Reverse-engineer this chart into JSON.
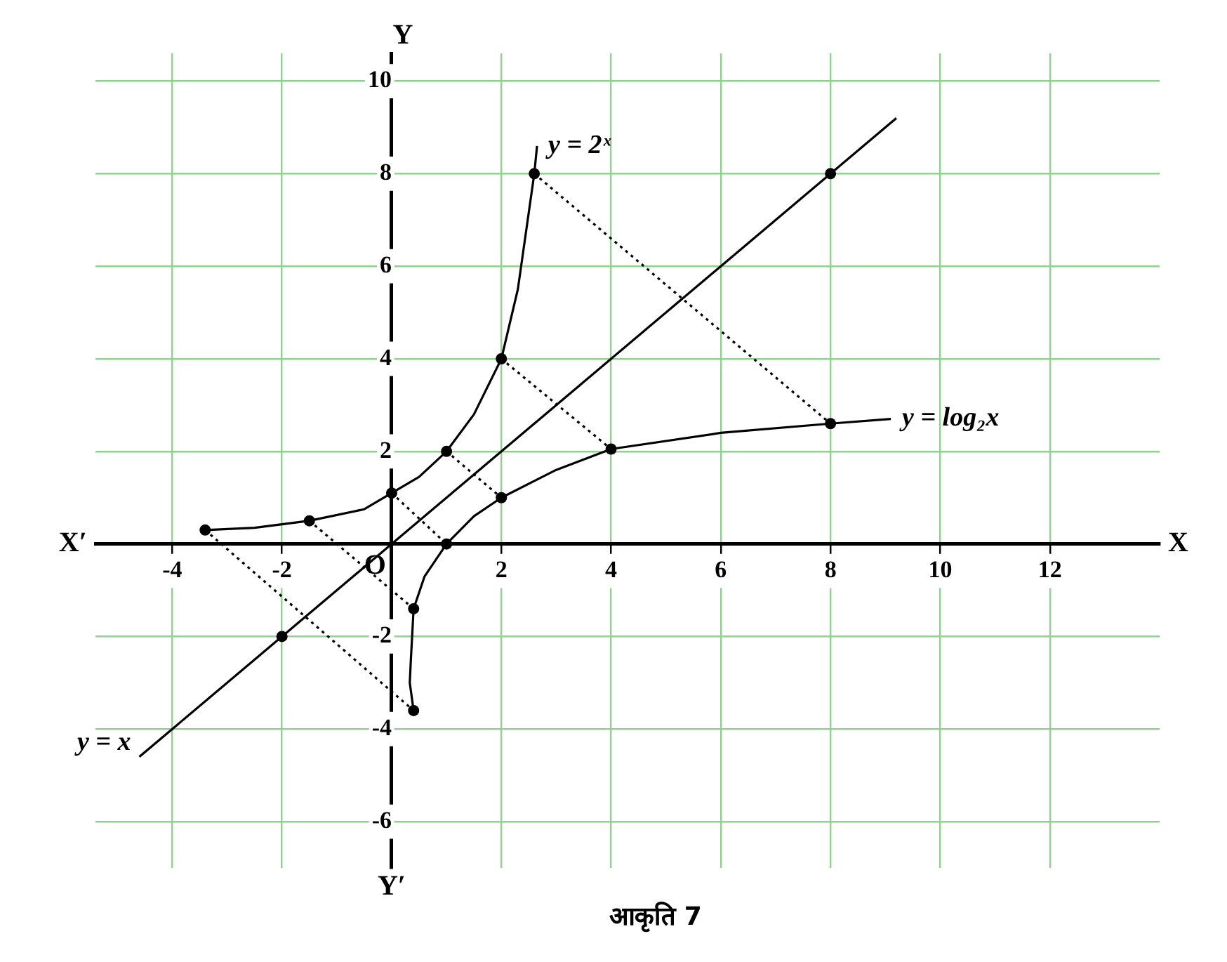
{
  "chart_data": {
    "type": "line",
    "xlabel": "X",
    "ylabel": "Y",
    "annotations": [
      "X′",
      "Y′",
      "O",
      "आकृति 7",
      {
        "text": "y = 2ˣ",
        "x": 2.65,
        "y": 8.6
      },
      {
        "text": "y = log₂x",
        "x": 9.1,
        "y": 2.7
      },
      {
        "text": "y = x",
        "x": -4.6,
        "y": -4.6
      }
    ],
    "xlim": [
      -5.4,
      14
    ],
    "ylim": [
      -7,
      10.6
    ],
    "xticks": [
      -4,
      -2,
      2,
      4,
      6,
      8,
      10,
      12
    ],
    "yticks": [
      -6,
      -4,
      -2,
      2,
      4,
      6,
      8,
      10
    ],
    "grid": true,
    "marker": "none",
    "line_style": "solid",
    "series": [
      {
        "color": "#000000",
        "x": [
          -3.4,
          -2.5,
          -1.5,
          -0.5,
          0,
          0.5,
          1,
          1.5,
          2,
          2.3,
          2.6,
          2.65
        ],
        "values": [
          0.3,
          0.35,
          0.5,
          0.75,
          1.1,
          1.45,
          2,
          2.8,
          4,
          5.5,
          8,
          8.6
        ]
      },
      {
        "color": "#000000",
        "x": [
          0.4,
          0.33,
          0.35,
          0.4,
          0.6,
          1,
          1.5,
          2,
          3,
          4,
          6,
          8,
          9.1
        ],
        "values": [
          -3.6,
          -3,
          -2.5,
          -1.4,
          -0.7,
          0,
          0.6,
          1,
          1.6,
          2.05,
          2.4,
          2.6,
          2.7
        ]
      },
      {
        "color": "#000000",
        "x": [
          -4.6,
          9.2
        ],
        "values": [
          -4.6,
          9.2
        ]
      },
      {
        "type": "scatter",
        "color": "#000000",
        "marker": "circle",
        "x": [
          -3.4,
          -1.5,
          0,
          1,
          2,
          2.6,
          0.4,
          0.4,
          1,
          2,
          4,
          8,
          8,
          -2
        ],
        "values": [
          0.3,
          0.5,
          1.1,
          2,
          4,
          8,
          -3.6,
          -1.4,
          0,
          1,
          2.05,
          2.6,
          8,
          -2
        ]
      },
      {
        "type": "line",
        "color": "#000000",
        "line_style": "dotted",
        "x": [
          2.6,
          8
        ],
        "values": [
          8,
          2.6
        ]
      },
      {
        "type": "line",
        "color": "#000000",
        "line_style": "dotted",
        "x": [
          2,
          4
        ],
        "values": [
          4,
          2.05
        ]
      },
      {
        "type": "line",
        "color": "#000000",
        "line_style": "dotted",
        "x": [
          1,
          2
        ],
        "values": [
          2,
          1
        ]
      },
      {
        "type": "line",
        "color": "#000000",
        "line_style": "dotted",
        "x": [
          0,
          1
        ],
        "values": [
          1.1,
          0
        ]
      },
      {
        "type": "line",
        "color": "#000000",
        "line_style": "dotted",
        "x": [
          -1.5,
          0.4
        ],
        "values": [
          0.5,
          -1.4
        ]
      },
      {
        "type": "line",
        "color": "#000000",
        "line_style": "dotted",
        "x": [
          -3.4,
          0.4
        ],
        "values": [
          0.3,
          -3.6
        ]
      }
    ]
  }
}
